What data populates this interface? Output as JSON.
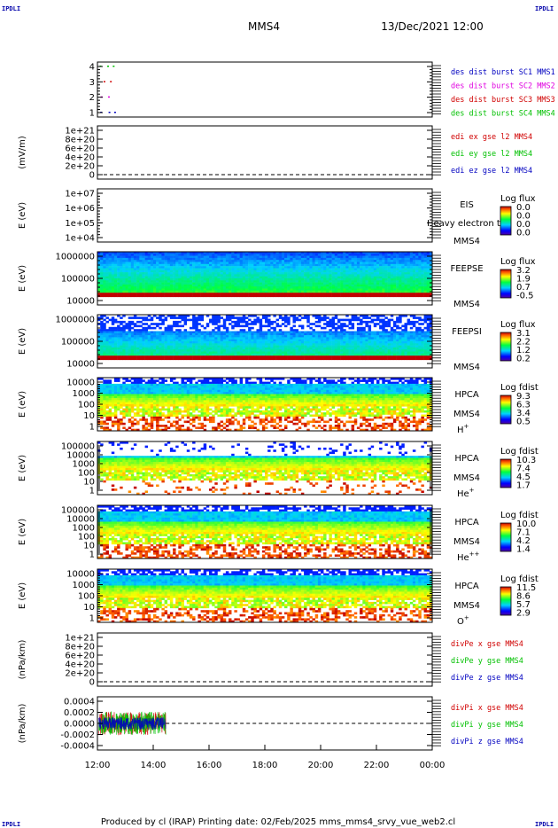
{
  "corners": {
    "tl": "IPDLI",
    "tr": "IPDLI",
    "bl": "IPDLI",
    "br": "IPDLI"
  },
  "header": {
    "spacecraft": "MMS4",
    "datetime": "13/Dec/2021 12:00"
  },
  "footer": "Produced by cl (IRAP)   Printing date: 02/Feb/2025   mms_mms4_srvy_vue_web2.cl",
  "colors": {
    "mms1": "#0000c0",
    "mms2": "#e000e0",
    "mms3": "#d00000",
    "mms4": "#00c000",
    "x": "#d00000",
    "y": "#00c000",
    "z": "#0000c0"
  },
  "chart_data": {
    "type": "heatmap",
    "x_ticks": [
      "12:00",
      "14:00",
      "16:00",
      "18:00",
      "20:00",
      "22:00",
      "00:00"
    ],
    "x_range_hours": [
      12,
      24
    ],
    "panels": [
      {
        "id": "burst",
        "type": "scatter",
        "ylabel": "",
        "y_ticks": [
          "4",
          "3",
          "2",
          "1"
        ],
        "legend": [
          {
            "text": "des dist burst SC1 MMS1",
            "color": "#0000c0"
          },
          {
            "text": "des dist burst SC2 MMS2",
            "color": "#e000e0"
          },
          {
            "text": "des dist burst SC3 MMS3",
            "color": "#d00000"
          },
          {
            "text": "des dist burst SC4 MMS4",
            "color": "#00c000"
          }
        ],
        "series": [
          {
            "sc": 4,
            "x": [
              12.08,
              12.35,
              12.55
            ]
          },
          {
            "sc": 3,
            "x": [
              12.22,
              12.45
            ]
          },
          {
            "sc": 2,
            "x": [
              12.12,
              12.38
            ]
          },
          {
            "sc": 1,
            "x": [
              12.1,
              12.4,
              12.6
            ]
          }
        ]
      },
      {
        "id": "edi",
        "type": "line",
        "ylabel": "(mV/m)",
        "y_ticks": [
          "1e+21",
          "8e+20",
          "6e+20",
          "4e+20",
          "2e+20",
          "0"
        ],
        "legend": [
          {
            "text": "edi ex gse l2 MMS4",
            "color": "#d00000"
          },
          {
            "text": "edi ey gse l2 MMS4",
            "color": "#00c000"
          },
          {
            "text": "edi ez gse l2 MMS4",
            "color": "#0000c0"
          }
        ]
      },
      {
        "id": "eis",
        "type": "heatmap",
        "ylabel": "E (eV)",
        "y_ticks": [
          "1e+07",
          "1e+06",
          "1e+05",
          "1e+04"
        ],
        "inst": [
          "EIS",
          "MMS4"
        ],
        "overlay": "Heavy electron to",
        "cb_title": "Log flux",
        "cb_vals": [
          "0.0",
          "0.0",
          "0.0",
          "0.0"
        ]
      },
      {
        "id": "feepse",
        "type": "heatmap",
        "ylabel": "E (eV)",
        "y_ticks": [
          "1000000",
          "100000",
          "10000"
        ],
        "inst": [
          "FEEPSE",
          "MMS4"
        ],
        "cb_title": "Log flux",
        "cb_vals": [
          "3.2",
          "1.9",
          "0.7",
          "-0.5"
        ]
      },
      {
        "id": "feepsi",
        "type": "heatmap",
        "ylabel": "E (eV)",
        "y_ticks": [
          "1000000",
          "100000",
          "10000"
        ],
        "inst": [
          "FEEPSI",
          "MMS4"
        ],
        "cb_title": "Log flux",
        "cb_vals": [
          "3.1",
          "2.2",
          "1.2",
          "0.2"
        ]
      },
      {
        "id": "hpca_h",
        "type": "heatmap",
        "ylabel": "E (eV)",
        "y_ticks": [
          "10000",
          "1000",
          "100",
          "10",
          "1"
        ],
        "inst": [
          "HPCA",
          "MMS4"
        ],
        "species": "H",
        "sup": "+",
        "cb_title": "Log fdist",
        "cb_vals": [
          "9.3",
          "6.3",
          "3.4",
          "0.5"
        ]
      },
      {
        "id": "hpca_he",
        "type": "heatmap",
        "ylabel": "E (eV)",
        "y_ticks": [
          "100000",
          "10000",
          "1000",
          "100",
          "10",
          "1"
        ],
        "inst": [
          "HPCA",
          "MMS4"
        ],
        "species": "He",
        "sup": "+",
        "cb_title": "Log fdist",
        "cb_vals": [
          "10.3",
          "7.4",
          "4.5",
          "1.7"
        ]
      },
      {
        "id": "hpca_hepp",
        "type": "heatmap",
        "ylabel": "E (eV)",
        "y_ticks": [
          "100000",
          "10000",
          "1000",
          "100",
          "10",
          "1"
        ],
        "inst": [
          "HPCA",
          "MMS4"
        ],
        "species": "He",
        "sup": "++",
        "cb_title": "Log fdist",
        "cb_vals": [
          "10.0",
          "7.1",
          "4.2",
          "1.4"
        ]
      },
      {
        "id": "hpca_o",
        "type": "heatmap",
        "ylabel": "E (eV)",
        "y_ticks": [
          "10000",
          "1000",
          "100",
          "10",
          "1"
        ],
        "inst": [
          "HPCA",
          "MMS4"
        ],
        "species": "O",
        "sup": "+",
        "cb_title": "Log fdist",
        "cb_vals": [
          "11.5",
          "8.6",
          "5.7",
          "2.9"
        ]
      },
      {
        "id": "divpe",
        "type": "line",
        "ylabel": "(nPa/km)",
        "y_ticks": [
          "1e+21",
          "8e+20",
          "6e+20",
          "4e+20",
          "2e+20",
          "0"
        ],
        "legend": [
          {
            "text": "divPe x gse MMS4",
            "color": "#d00000"
          },
          {
            "text": "divPe y gse MMS4",
            "color": "#00c000"
          },
          {
            "text": "divPe z gse MMS4",
            "color": "#0000c0"
          }
        ]
      },
      {
        "id": "divpi",
        "type": "line",
        "ylabel": "(nPa/km)",
        "y_ticks": [
          "0.0004",
          "0.0002",
          "0.0000",
          "-0.0002",
          "-0.0004"
        ],
        "legend": [
          {
            "text": "divPi x gse MMS4",
            "color": "#d00000"
          },
          {
            "text": "divPi y gse MMS4",
            "color": "#00c000"
          },
          {
            "text": "divPi z gse MMS4",
            "color": "#0000c0"
          }
        ],
        "data_end_hours": 14.45
      }
    ]
  }
}
